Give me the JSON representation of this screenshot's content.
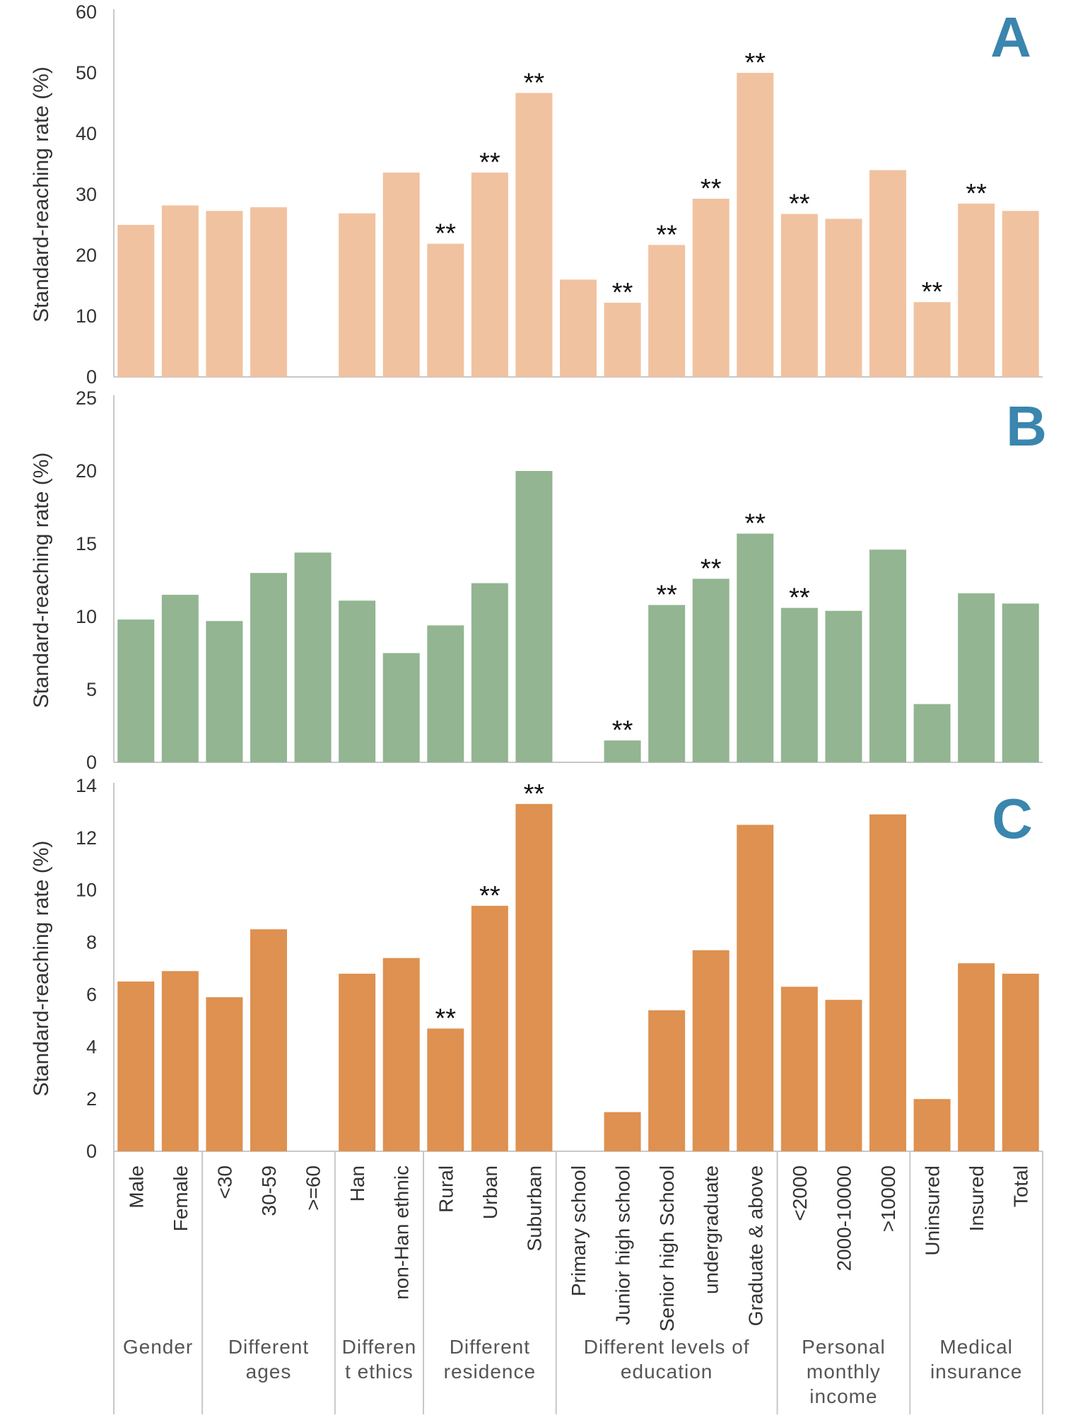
{
  "chart_data": [
    {
      "type": "bar",
      "panel": "A",
      "ylabel": "Standard-reaching rate (%)",
      "ylim": [
        0,
        60
      ],
      "yticks": [
        0,
        10,
        20,
        30,
        40,
        50,
        60
      ],
      "color": "#f1c2a0",
      "letter_color": "#3a86ae",
      "values": [
        25,
        28.2,
        27.3,
        27.9,
        null,
        26.9,
        33.6,
        21.9,
        33.6,
        46.7,
        16,
        12.2,
        21.7,
        29.3,
        50,
        26.8,
        26,
        34,
        12.3,
        28.5,
        27.3
      ],
      "significance": [
        "",
        "",
        "",
        "",
        "",
        "",
        "",
        "**",
        "**",
        "**",
        "",
        "**",
        "**",
        "**",
        "**",
        "**",
        "",
        "",
        "**",
        "**",
        ""
      ]
    },
    {
      "type": "bar",
      "panel": "B",
      "ylabel": "Standard-reaching rate (%)",
      "ylim": [
        0,
        25
      ],
      "yticks": [
        0,
        5,
        10,
        15,
        20,
        25
      ],
      "color": "#93b592",
      "letter_color": "#3a86ae",
      "values": [
        9.8,
        11.5,
        9.7,
        13,
        14.4,
        11.1,
        7.5,
        9.4,
        12.3,
        20,
        null,
        1.5,
        10.8,
        12.6,
        15.7,
        10.6,
        10.4,
        14.6,
        4,
        11.6,
        10.9
      ],
      "significance": [
        "",
        "",
        "",
        "",
        "",
        "",
        "",
        "",
        "",
        "",
        "",
        "**",
        "**",
        "**",
        "**",
        "**",
        "",
        "",
        "",
        "",
        ""
      ]
    },
    {
      "type": "bar",
      "panel": "C",
      "ylabel": "Standard-reaching rate (%)",
      "ylim": [
        0,
        14
      ],
      "yticks": [
        0,
        2,
        4,
        6,
        8,
        10,
        12,
        14
      ],
      "color": "#de9150",
      "letter_color": "#3a86ae",
      "values": [
        6.5,
        6.9,
        5.9,
        8.5,
        null,
        6.8,
        7.4,
        4.7,
        9.4,
        13.3,
        null,
        1.5,
        5.4,
        7.7,
        12.5,
        6.3,
        5.8,
        12.9,
        2,
        7.2,
        6.8
      ],
      "significance": [
        "",
        "",
        "",
        "",
        "",
        "",
        "",
        "**",
        "**",
        "**",
        "",
        "",
        "",
        "",
        "",
        "",
        "",
        "",
        "",
        "",
        ""
      ]
    }
  ],
  "categories": [
    "Male",
    "Female",
    "<30",
    "30-59",
    ">=60",
    "Han",
    "non-Han ethnic",
    "Rural",
    "Urban",
    "Suburban",
    "Primary school",
    "Junior high school",
    "Senior high School",
    "undergraduate",
    "Graduate & above",
    "<2000",
    "2000-10000",
    ">10000",
    "Uninsured",
    "Insured",
    "Total"
  ],
  "groups": [
    {
      "lines": [
        "Gender"
      ],
      "span": [
        0,
        1
      ]
    },
    {
      "lines": [
        "Different",
        "ages"
      ],
      "span": [
        2,
        4
      ]
    },
    {
      "lines": [
        "Differen",
        "t ethics"
      ],
      "span": [
        5,
        6
      ]
    },
    {
      "lines": [
        "Different",
        "residence"
      ],
      "span": [
        7,
        9
      ]
    },
    {
      "lines": [
        "Different levels of",
        "education"
      ],
      "span": [
        10,
        14
      ]
    },
    {
      "lines": [
        "Personal",
        "monthly",
        "income"
      ],
      "span": [
        15,
        17
      ]
    },
    {
      "lines": [
        "Medical",
        "insurance"
      ],
      "span": [
        18,
        20
      ]
    }
  ],
  "panel_letters": [
    "A",
    "B",
    "C"
  ]
}
